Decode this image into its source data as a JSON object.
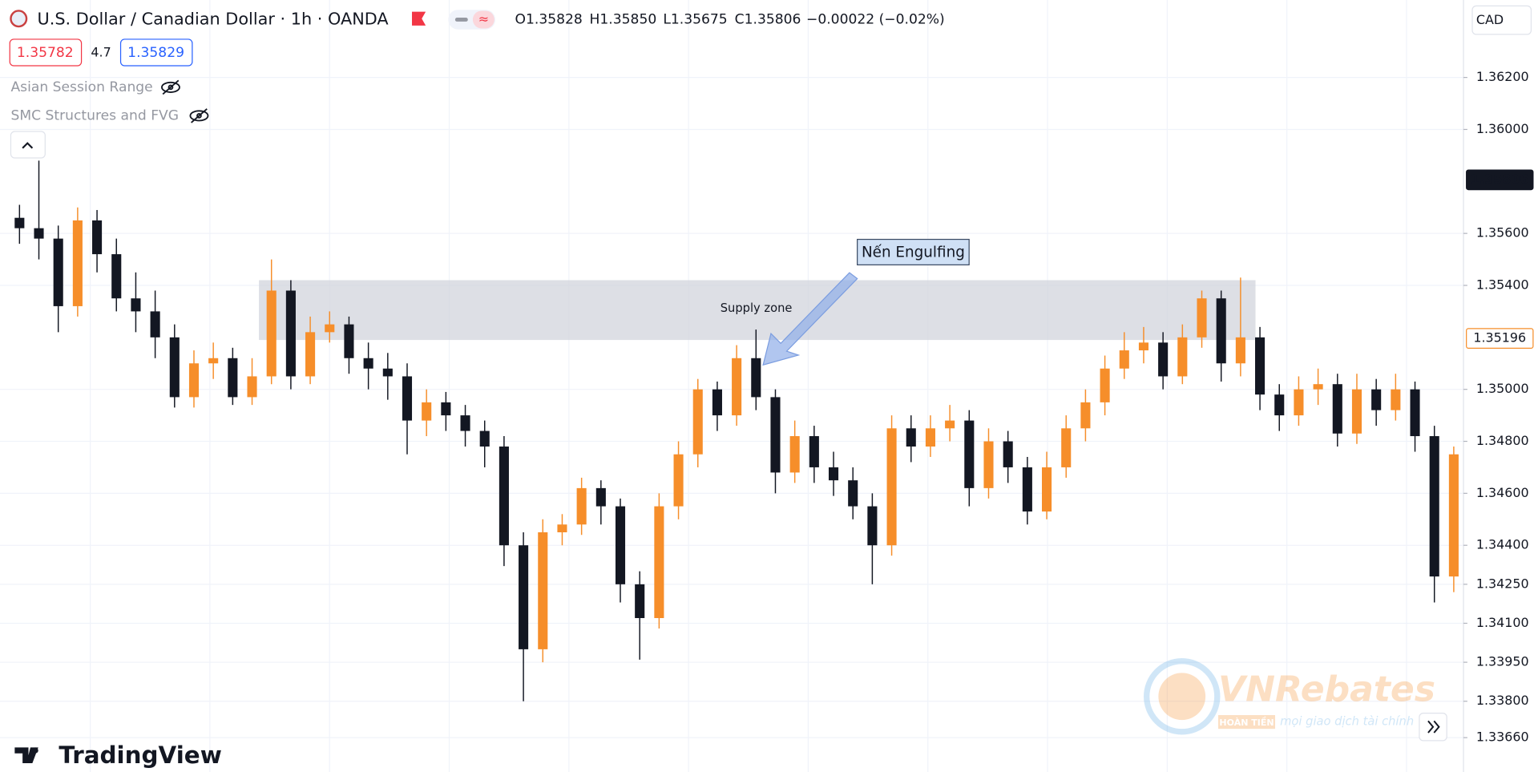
{
  "header": {
    "symbol": "U.S. Dollar / Canadian Dollar · 1h · OANDA",
    "ohlc": [
      "O1.35828",
      "H1.35850",
      "L1.35675",
      "C1.35806",
      "−0.00022 (−0.02%)"
    ],
    "bid": "1.35782",
    "spread": "4.7",
    "ask": "1.35829",
    "currency": "CAD"
  },
  "indicators": [
    "Asian Session Range",
    "SMC Structures and FVG"
  ],
  "logo": "TradingView",
  "watermark": {
    "brand": "VNRebates",
    "tag": "HOÀN TIỀN",
    "slogan": "mọi giao dịch tài chính"
  },
  "chart_data": {
    "type": "candlestick",
    "up_color": "#f68e2a",
    "down_color": "#131722",
    "grid": true,
    "ylim": [
      1.33524,
      1.36498
    ],
    "yticks": [
      {
        "value": 1.362,
        "label": "1.36200"
      },
      {
        "value": 1.36,
        "label": "1.36000"
      },
      {
        "value": 1.356,
        "label": "1.35600"
      },
      {
        "value": 1.354,
        "label": "1.35400"
      },
      {
        "value": 1.35,
        "label": "1.35000"
      },
      {
        "value": 1.348,
        "label": "1.34800"
      },
      {
        "value": 1.346,
        "label": "1.34600"
      },
      {
        "value": 1.344,
        "label": "1.34400"
      },
      {
        "value": 1.3425,
        "label": "1.34250"
      },
      {
        "value": 1.341,
        "label": "1.34100"
      },
      {
        "value": 1.3395,
        "label": "1.33950"
      },
      {
        "value": 1.338,
        "label": "1.33800"
      },
      {
        "value": 1.3366,
        "label": "1.33660"
      }
    ],
    "price_labels": [
      {
        "value": 1.35806,
        "color": "#131722"
      },
      {
        "value": 1.35196,
        "color": "#f68e2a"
      }
    ],
    "zone": {
      "label": "Supply zone",
      "low": 1.3519,
      "high": 1.3542
    },
    "annotation": "Nến Engulfing",
    "open": [
      1.3566,
      1.3562,
      1.3558,
      1.3532,
      1.3565,
      1.3552,
      1.3535,
      1.353,
      1.352,
      1.3497,
      1.351,
      1.3512,
      1.3497,
      1.3505,
      1.3538,
      1.3505,
      1.3522,
      1.3525,
      1.3512,
      1.3508,
      1.3505,
      1.3488,
      1.3495,
      1.349,
      1.3484,
      1.3478,
      1.344,
      1.34,
      1.3445,
      1.3448,
      1.3462,
      1.3455,
      1.3425,
      1.3412,
      1.3455,
      1.3475,
      1.35,
      1.349,
      1.3512,
      1.3497,
      1.3468,
      1.3482,
      1.347,
      1.3465,
      1.3455,
      1.344,
      1.3485,
      1.3478,
      1.3485,
      1.3488,
      1.3462,
      1.348,
      1.347,
      1.3453,
      1.347,
      1.3485,
      1.3495,
      1.3508,
      1.3515,
      1.3518,
      1.3505,
      1.352,
      1.3535,
      1.351,
      1.352,
      1.3498,
      1.349,
      1.35,
      1.3502,
      1.3483,
      1.35,
      1.3492,
      1.35,
      1.3482,
      1.3428
    ],
    "high": [
      1.3571,
      1.3588,
      1.3563,
      1.357,
      1.3569,
      1.3558,
      1.3545,
      1.3538,
      1.3525,
      1.3515,
      1.3518,
      1.3516,
      1.3512,
      1.355,
      1.3542,
      1.3528,
      1.353,
      1.3528,
      1.3518,
      1.3514,
      1.351,
      1.35,
      1.3499,
      1.3494,
      1.3488,
      1.3482,
      1.3445,
      1.345,
      1.3452,
      1.3466,
      1.3465,
      1.3458,
      1.343,
      1.346,
      1.348,
      1.3504,
      1.3503,
      1.3517,
      1.3523,
      1.35,
      1.3488,
      1.3486,
      1.3476,
      1.347,
      1.346,
      1.349,
      1.349,
      1.349,
      1.3494,
      1.3492,
      1.3485,
      1.3484,
      1.3474,
      1.3476,
      1.349,
      1.35,
      1.3513,
      1.3522,
      1.3524,
      1.3522,
      1.3525,
      1.3538,
      1.3538,
      1.3543,
      1.3524,
      1.3502,
      1.3505,
      1.3508,
      1.3506,
      1.3506,
      1.3504,
      1.3506,
      1.3503,
      1.3486,
      1.3478
    ],
    "low": [
      1.3556,
      1.355,
      1.3522,
      1.3528,
      1.3545,
      1.353,
      1.3522,
      1.3512,
      1.3493,
      1.3493,
      1.3504,
      1.3494,
      1.3494,
      1.3502,
      1.35,
      1.3502,
      1.3518,
      1.3506,
      1.35,
      1.3496,
      1.3475,
      1.3482,
      1.3484,
      1.3478,
      1.347,
      1.3432,
      1.338,
      1.3395,
      1.344,
      1.3444,
      1.3448,
      1.3418,
      1.3396,
      1.3408,
      1.345,
      1.347,
      1.3484,
      1.3486,
      1.3492,
      1.346,
      1.3464,
      1.3464,
      1.3459,
      1.345,
      1.3425,
      1.3436,
      1.3472,
      1.3474,
      1.348,
      1.3455,
      1.3458,
      1.3464,
      1.3448,
      1.345,
      1.3466,
      1.348,
      1.349,
      1.3504,
      1.351,
      1.35,
      1.3502,
      1.3516,
      1.3503,
      1.3505,
      1.3492,
      1.3484,
      1.3486,
      1.3494,
      1.3478,
      1.3479,
      1.3486,
      1.3488,
      1.3476,
      1.3418,
      1.3422
    ],
    "close": [
      1.3562,
      1.3558,
      1.3532,
      1.3565,
      1.3552,
      1.3535,
      1.353,
      1.352,
      1.3497,
      1.351,
      1.3512,
      1.3497,
      1.3505,
      1.3538,
      1.3505,
      1.3522,
      1.3525,
      1.3512,
      1.3508,
      1.3505,
      1.3488,
      1.3495,
      1.349,
      1.3484,
      1.3478,
      1.344,
      1.34,
      1.3445,
      1.3448,
      1.3462,
      1.3455,
      1.3425,
      1.3412,
      1.3455,
      1.3475,
      1.35,
      1.349,
      1.3512,
      1.3497,
      1.3468,
      1.3482,
      1.347,
      1.3465,
      1.3455,
      1.344,
      1.3485,
      1.3478,
      1.3485,
      1.3488,
      1.3462,
      1.348,
      1.347,
      1.3453,
      1.347,
      1.3485,
      1.3495,
      1.3508,
      1.3515,
      1.3518,
      1.3505,
      1.352,
      1.3535,
      1.351,
      1.352,
      1.3498,
      1.349,
      1.35,
      1.3502,
      1.3483,
      1.35,
      1.3492,
      1.35,
      1.3482,
      1.3428,
      1.3475
    ]
  }
}
